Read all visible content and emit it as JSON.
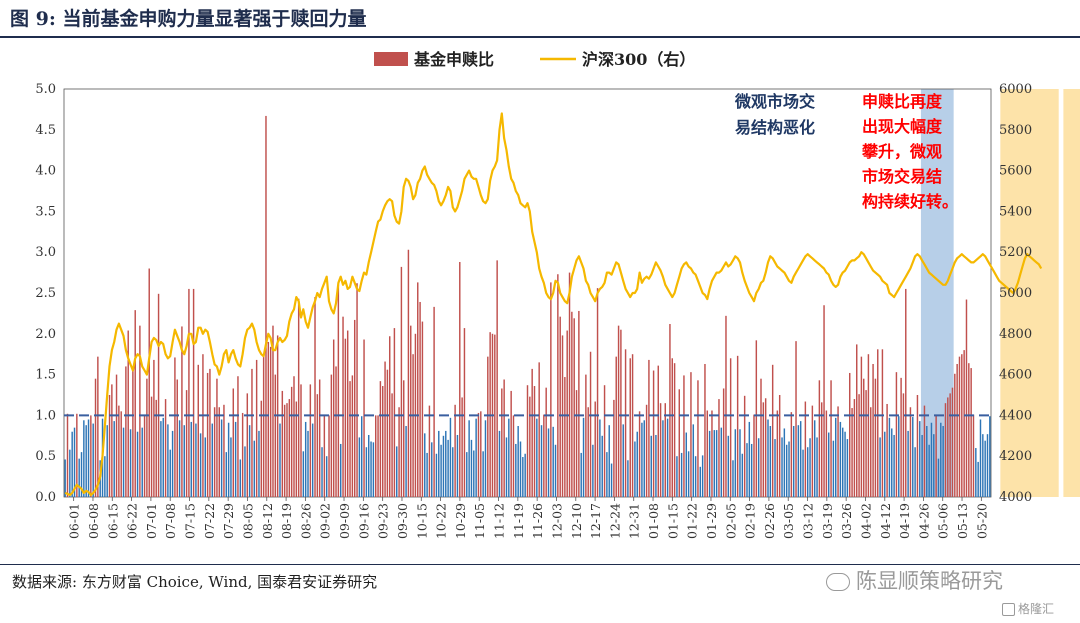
{
  "figure": {
    "title": "图 9:  当前基金申购力量显著强于赎回力量",
    "source": "数据来源:  东方财富 Choice,  Wind,  国泰君安证券研究",
    "watermark": "陈显顺策略研究",
    "corner_mark": "格隆汇"
  },
  "colors": {
    "bar_red": "#c0504d",
    "bar_blue": "#2e75b6",
    "line_gold": "#f5b800",
    "dash": "#3a5fa0",
    "band_blue": "#9fbfe0",
    "band_gold": "#fcd98c",
    "text_navy": "#1f3864",
    "text_red": "#ff0000"
  },
  "chart_data": {
    "type": "bar",
    "legend": [
      {
        "name": "基金申赎比",
        "kind": "bar"
      },
      {
        "name": "沪深300（右）",
        "kind": "line"
      }
    ],
    "legend_position": "top-center",
    "y_left": {
      "min": 0,
      "max": 5,
      "ticks": [
        "0.0",
        "0.5",
        "1.0",
        "1.5",
        "2.0",
        "2.5",
        "3.0",
        "3.5",
        "4.0",
        "4.5",
        "5.0"
      ]
    },
    "y_right": {
      "min": 4000,
      "max": 6000,
      "ticks": [
        "4000",
        "4200",
        "4400",
        "4600",
        "4800",
        "5000",
        "5200",
        "5400",
        "5600",
        "5800",
        "6000"
      ]
    },
    "reference_line": 1.0,
    "x_tick_labels": [
      "06-01",
      "06-08",
      "06-15",
      "06-22",
      "07-01",
      "07-08",
      "07-15",
      "07-22",
      "07-29",
      "08-05",
      "08-12",
      "08-19",
      "08-26",
      "09-02",
      "09-09",
      "09-16",
      "09-23",
      "09-30",
      "10-15",
      "10-22",
      "10-29",
      "11-05",
      "11-12",
      "11-19",
      "11-26",
      "12-03",
      "12-10",
      "12-17",
      "12-24",
      "12-31",
      "01-08",
      "01-15",
      "01-22",
      "01-29",
      "02-05",
      "02-19",
      "02-26",
      "03-05",
      "03-12",
      "03-19",
      "03-26",
      "04-02",
      "04-12",
      "04-19",
      "04-26",
      "05-06",
      "05-13",
      "05-20"
    ],
    "bar_values": [
      0.46,
      1.02,
      0.58,
      0.8,
      0.85,
      1.02,
      0.47,
      0.55,
      0.94,
      0.88,
      0.95,
      1.0,
      0.9,
      1.45,
      1.72,
      0.45,
      0.96,
      0.5,
      0.88,
      1.25,
      1.38,
      0.93,
      1.5,
      1.12,
      1.05,
      0.85,
      1.6,
      2.04,
      0.83,
      1.58,
      2.29,
      0.8,
      2.1,
      0.85,
      1.01,
      1.45,
      2.8,
      1.23,
      1.68,
      1.19,
      2.49,
      0.93,
      0.97,
      1.2,
      0.89,
      0.58,
      0.81,
      1.71,
      1.44,
      0.94,
      2.09,
      0.88,
      1.31,
      2.55,
      0.92,
      2.55,
      0.9,
      1.62,
      0.78,
      1.75,
      0.73,
      1.52,
      1.57,
      0.9,
      1.1,
      1.45,
      1.1,
      0.95,
      1.13,
      0.55,
      0.91,
      0.73,
      1.33,
      0.92,
      1.48,
      0.46,
      1.03,
      0.62,
      1.27,
      0.88,
      1.57,
      0.69,
      1.68,
      0.81,
      1.18,
      1.74,
      4.67,
      1.9,
      1.84,
      2.1,
      1.5,
      1.98,
      0.9,
      1.3,
      1.13,
      1.15,
      1.2,
      1.35,
      1.48,
      1.17,
      2.43,
      1.38,
      0.56,
      0.92,
      0.81,
      1.38,
      0.9,
      2.45,
      1.26,
      1.44,
      0.61,
      1.0,
      0.5,
      1.0,
      1.5,
      1.93,
      1.6,
      2.6,
      0.65,
      2.21,
      1.94,
      2.04,
      1.42,
      1.49,
      2.17,
      2.62,
      0.73,
      0.99,
      1.93,
      0.61,
      0.76,
      0.68,
      0.67,
      1.0,
      1.0,
      1.42,
      1.36,
      1.66,
      1.56,
      1.97,
      1.27,
      2.07,
      0.62,
      1.1,
      2.82,
      1.43,
      0.87,
      3.03,
      2.1,
      1.75,
      2.0,
      2.63,
      2.39,
      2.15,
      0.78,
      0.54,
      1.12,
      0.67,
      2.33,
      0.53,
      0.81,
      0.64,
      0.75,
      0.81,
      0.7,
      0.97,
      0.61,
      1.13,
      0.76,
      2.88,
      1.22,
      2.07,
      0.55,
      0.94,
      0.7,
      0.57,
      0.96,
      1.03,
      1.05,
      0.56,
      0.94,
      1.72,
      2.02,
      2.0,
      1.99,
      2.9,
      0.81,
      1.33,
      1.44,
      0.73,
      0.96,
      1.3,
      1.0,
      0.65,
      0.87,
      0.68,
      0.49,
      0.53,
      1.37,
      1.23,
      1.57,
      1.36,
      0.96,
      1.65,
      0.88,
      1.01,
      1.34,
      0.84,
      2.63,
      0.86,
      0.64,
      2.73,
      2.21,
      1.98,
      1.47,
      2.04,
      2.75,
      2.27,
      2.19,
      1.31,
      2.28,
      0.54,
      0.97,
      1.5,
      1.1,
      1.78,
      0.64,
      1.17,
      2.56,
      0.95,
      0.75,
      1.37,
      0.55,
      0.88,
      0.41,
      1.19,
      1.72,
      2.1,
      2.05,
      0.89,
      1.81,
      0.45,
      1.7,
      1.75,
      0.68,
      0.8,
      1.05,
      0.91,
      0.94,
      1.13,
      1.68,
      0.75,
      1.55,
      0.76,
      1.61,
      1.15,
      0.94,
      1.15,
      0.96,
      2.12,
      1.7,
      1.64,
      0.5,
      1.32,
      0.54,
      1.49,
      0.79,
      0.56,
      1.53,
      0.89,
      0.5,
      1.43,
      0.37,
      0.51,
      1.63,
      1.06,
      0.81,
      1.06,
      0.82,
      0.82,
      1.2,
      0.85,
      1.33,
      2.22,
      0.75,
      1.7,
      0.45,
      0.83,
      1.73,
      0.83,
      0.53,
      1.24,
      0.66,
      0.92,
      0.65,
      1.01,
      1.92,
      0.72,
      1.45,
      1.16,
      1.21,
      0.95,
      0.87,
      1.62,
      0.71,
      1.06,
      1.25,
      0.73,
      0.84,
      0.64,
      0.68,
      1.04,
      0.87,
      1.91,
      0.88,
      0.93,
      0.58,
      1.17,
      0.61,
      0.72,
      1.12,
      0.94,
      0.73,
      1.43,
      1.16,
      2.35,
      1.06,
      0.79,
      1.43,
      0.69,
      0.97,
      1.11,
      0.92,
      0.85,
      0.8,
      0.71,
      1.52,
      1.09,
      1.2,
      1.87,
      1.26,
      1.72,
      1.45,
      1.31,
      1.75,
      1.1,
      1.63,
      1.45,
      1.81,
      0.73,
      1.81,
      0.8,
      1.14,
      0.97,
      0.84,
      0.76,
      1.53,
      0.99,
      1.46,
      1.27,
      2.55,
      0.81,
      1.1,
      0.98,
      0.61,
      1.25,
      0.93,
      0.76,
      1.12,
      0.87,
      0.64,
      0.91,
      0.77,
      1.0,
      0.47,
      0.91,
      0.87,
      1.15,
      1.22,
      1.27,
      1.34,
      1.51,
      1.63,
      1.72,
      1.75,
      1.8,
      2.42,
      1.64,
      1.58,
      1.01,
      0.6,
      0.43,
      0.95,
      0.77,
      0.69,
      0.77,
      0.99
    ],
    "line_values": [
      4020,
      4015,
      4010,
      4020,
      4040,
      4060,
      4050,
      4040,
      4020,
      4030,
      4025,
      4010,
      4020,
      4035,
      4060,
      4100,
      4200,
      4350,
      4500,
      4640,
      4720,
      4760,
      4820,
      4850,
      4820,
      4790,
      4720,
      4680,
      4650,
      4620,
      4680,
      4700,
      4690,
      4640,
      4620,
      4600,
      4680,
      4760,
      4780,
      4770,
      4740,
      4760,
      4750,
      4700,
      4680,
      4690,
      4760,
      4820,
      4790,
      4760,
      4720,
      4700,
      4740,
      4800,
      4800,
      4750,
      4760,
      4830,
      4830,
      4800,
      4820,
      4810,
      4760,
      4700,
      4650,
      4640,
      4600,
      4640,
      4700,
      4720,
      4660,
      4700,
      4720,
      4680,
      4650,
      4640,
      4700,
      4780,
      4820,
      4830,
      4850,
      4820,
      4760,
      4720,
      4700,
      4690,
      4750,
      4800,
      4780,
      4720,
      4720,
      4760,
      4780,
      4760,
      4770,
      4790,
      4860,
      4900,
      4920,
      4980,
      4960,
      4880,
      4920,
      4860,
      4830,
      4880,
      4930,
      4960,
      5000,
      4980,
      5020,
      5050,
      5080,
      4960,
      4920,
      4900,
      4950,
      5050,
      5080,
      5040,
      5060,
      5020,
      5030,
      5080,
      5050,
      5020,
      5010,
      5060,
      5100,
      5090,
      5150,
      5200,
      5250,
      5300,
      5350,
      5360,
      5400,
      5430,
      5450,
      5460,
      5450,
      5380,
      5350,
      5340,
      5400,
      5520,
      5560,
      5550,
      5520,
      5460,
      5480,
      5540,
      5560,
      5600,
      5620,
      5580,
      5560,
      5540,
      5530,
      5500,
      5450,
      5430,
      5450,
      5480,
      5520,
      5500,
      5420,
      5400,
      5420,
      5460,
      5500,
      5560,
      5580,
      5600,
      5570,
      5560,
      5560,
      5520,
      5480,
      5450,
      5440,
      5460,
      5550,
      5600,
      5620,
      5650,
      5800,
      5880,
      5760,
      5700,
      5620,
      5560,
      5540,
      5500,
      5480,
      5440,
      5430,
      5420,
      5440,
      5400,
      5300,
      5250,
      5200,
      5120,
      5080,
      5050,
      5000,
      4980,
      4970,
      5000,
      5060,
      5050,
      5000,
      4980,
      4960,
      4950,
      5000,
      5080,
      5120,
      5160,
      5180,
      5150,
      5120,
      5060,
      5040,
      5000,
      4980,
      4960,
      5000,
      5020,
      5030,
      5050,
      5100,
      5100,
      5090,
      5120,
      5150,
      5140,
      5100,
      5060,
      5020,
      5000,
      4980,
      5000,
      5000,
      5020,
      5100,
      5050,
      5070,
      5080,
      5070,
      5090,
      5120,
      5150,
      5130,
      5110,
      5080,
      5040,
      5020,
      5000,
      4980,
      5000,
      5040,
      5080,
      5120,
      5140,
      5150,
      5130,
      5120,
      5100,
      5090,
      5060,
      5030,
      5000,
      4990,
      4970,
      5020,
      5060,
      5080,
      5100,
      5100,
      5110,
      5130,
      5150,
      5130,
      5140,
      5160,
      5180,
      5170,
      5150,
      5100,
      5060,
      5030,
      5000,
      4980,
      4960,
      5000,
      5020,
      5050,
      5060,
      5100,
      5150,
      5180,
      5170,
      5150,
      5130,
      5120,
      5110,
      5100,
      5080,
      5060,
      5050,
      5080,
      5100,
      5120,
      5140,
      5160,
      5180,
      5190,
      5180,
      5170,
      5160,
      5150,
      5140,
      5130,
      5120,
      5100,
      5090,
      5060,
      5040,
      5030,
      5040,
      5080,
      5100,
      5110,
      5130,
      5150,
      5160,
      5160,
      5170,
      5180,
      5200,
      5190,
      5170,
      5150,
      5130,
      5110,
      5100,
      5090,
      5080,
      5060,
      5050,
      5040,
      5000,
      4990,
      4980,
      5000,
      5020,
      5040,
      5060,
      5080,
      5100,
      5120,
      5150,
      5180,
      5190,
      5180,
      5160,
      5140,
      5120,
      5100,
      5090,
      5080,
      5070,
      5060,
      5050,
      5040,
      5040,
      5060,
      5090,
      5120,
      5150,
      5170,
      5180,
      5190,
      5180,
      5170,
      5160,
      5150,
      5150,
      5160,
      5170,
      5180,
      5190,
      5180,
      5160,
      5140,
      5120,
      5100,
      5080,
      5060,
      5050,
      5040,
      5030,
      5020,
      5010,
      5000,
      5020,
      5050,
      5090,
      5130,
      5170,
      5190,
      5180,
      5170,
      5160,
      5150,
      5140,
      5120
    ],
    "highlight_bands": [
      {
        "label": "微观市场交易结构恶化",
        "start_index": 367,
        "end_index": 380,
        "color": "band_blue"
      },
      {
        "label": "",
        "start_index": 401,
        "end_index": 425,
        "color": "band_gold"
      },
      {
        "label": "",
        "start_index": 428,
        "end_index": 451,
        "color": "band_gold"
      }
    ],
    "annotations": [
      {
        "id": "deterioration",
        "lines": [
          "微观市场交",
          "易结构恶化"
        ],
        "color": "text_navy"
      },
      {
        "id": "improvement",
        "lines": [
          "申赎比再度",
          "出现大幅度",
          "攀升，微观",
          "市场交易结",
          "构持续好转。"
        ],
        "color": "text_red"
      }
    ]
  }
}
